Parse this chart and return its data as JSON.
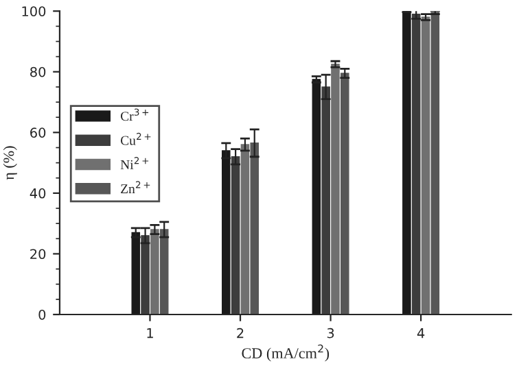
{
  "chart_data": {
    "type": "bar",
    "xlabel": "CD (mA/cm$^{2}$)",
    "ylabel": "η (%)",
    "categories": [
      "1",
      "2",
      "3",
      "4"
    ],
    "series": [
      {
        "name": "Cr$^{3+}$",
        "color": "#1a1a1a",
        "values": [
          27,
          54,
          77.5,
          100
        ],
        "errors": [
          1.5,
          2.5,
          1,
          0.3
        ]
      },
      {
        "name": "Cu$^{2+}$",
        "color": "#3d3d3d",
        "values": [
          26,
          52,
          75,
          99
        ],
        "errors": [
          2.5,
          2.5,
          4,
          1.5
        ]
      },
      {
        "name": "Ni$^{2+}$",
        "color": "#707070",
        "values": [
          28,
          56,
          82.5,
          98
        ],
        "errors": [
          1.5,
          2,
          1,
          1
        ]
      },
      {
        "name": "Zn$^{2+}$",
        "color": "#575757",
        "values": [
          28,
          56.5,
          79.5,
          99.5
        ],
        "errors": [
          2.5,
          4.5,
          1.5,
          0.5
        ]
      }
    ],
    "ylim": [
      0,
      100
    ],
    "yticks": [
      0,
      20,
      40,
      60,
      80,
      100
    ],
    "grid": false,
    "legend": "left"
  }
}
